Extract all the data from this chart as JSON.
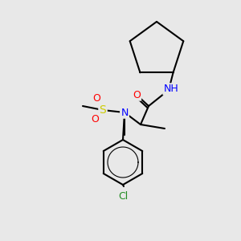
{
  "background_color": "#e8e8e8",
  "bond_color": "#000000",
  "bond_lw": 1.5,
  "atom_colors": {
    "N": "#0000FF",
    "O": "#FF0000",
    "Cl": "#228B22",
    "S": "#CCCC00",
    "C": "#000000",
    "H": "#00AAAA"
  },
  "font_size": 9,
  "font_size_small": 8
}
